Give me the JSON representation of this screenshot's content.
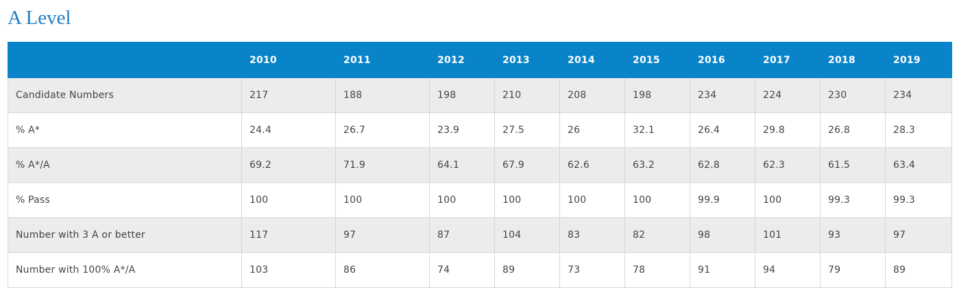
{
  "title": "A Level",
  "table": {
    "columns": [
      "",
      "2010",
      "2011",
      "2012",
      "2013",
      "2014",
      "2015",
      "2016",
      "2017",
      "2018",
      "2019"
    ],
    "rows": [
      [
        "Candidate Numbers",
        "217",
        "188",
        "198",
        "210",
        "208",
        "198",
        "234",
        "224",
        "230",
        "234"
      ],
      [
        "% A*",
        "24.4",
        "26.7",
        "23.9",
        "27.5",
        "26",
        "32.1",
        "26.4",
        "29.8",
        "26.8",
        "28.3"
      ],
      [
        "% A*/A",
        "69.2",
        "71.9",
        "64.1",
        "67.9",
        "62.6",
        "63.2",
        "62.8",
        "62.3",
        "61.5",
        "63.4"
      ],
      [
        "% Pass",
        "100",
        "100",
        "100",
        "100",
        "100",
        "100",
        "99.9",
        "100",
        "99.3",
        "99.3"
      ],
      [
        "Number with 3 A or better",
        "117",
        "97",
        "87",
        "104",
        "83",
        "82",
        "98",
        "101",
        "93",
        "97"
      ],
      [
        "Number with 100% A*/A",
        "103",
        "86",
        "74",
        "89",
        "73",
        "78",
        "91",
        "94",
        "79",
        "89"
      ]
    ]
  },
  "colors": {
    "header_bg": "#0a84c9",
    "title": "#1e7fc7",
    "stripe": "#ececec"
  }
}
